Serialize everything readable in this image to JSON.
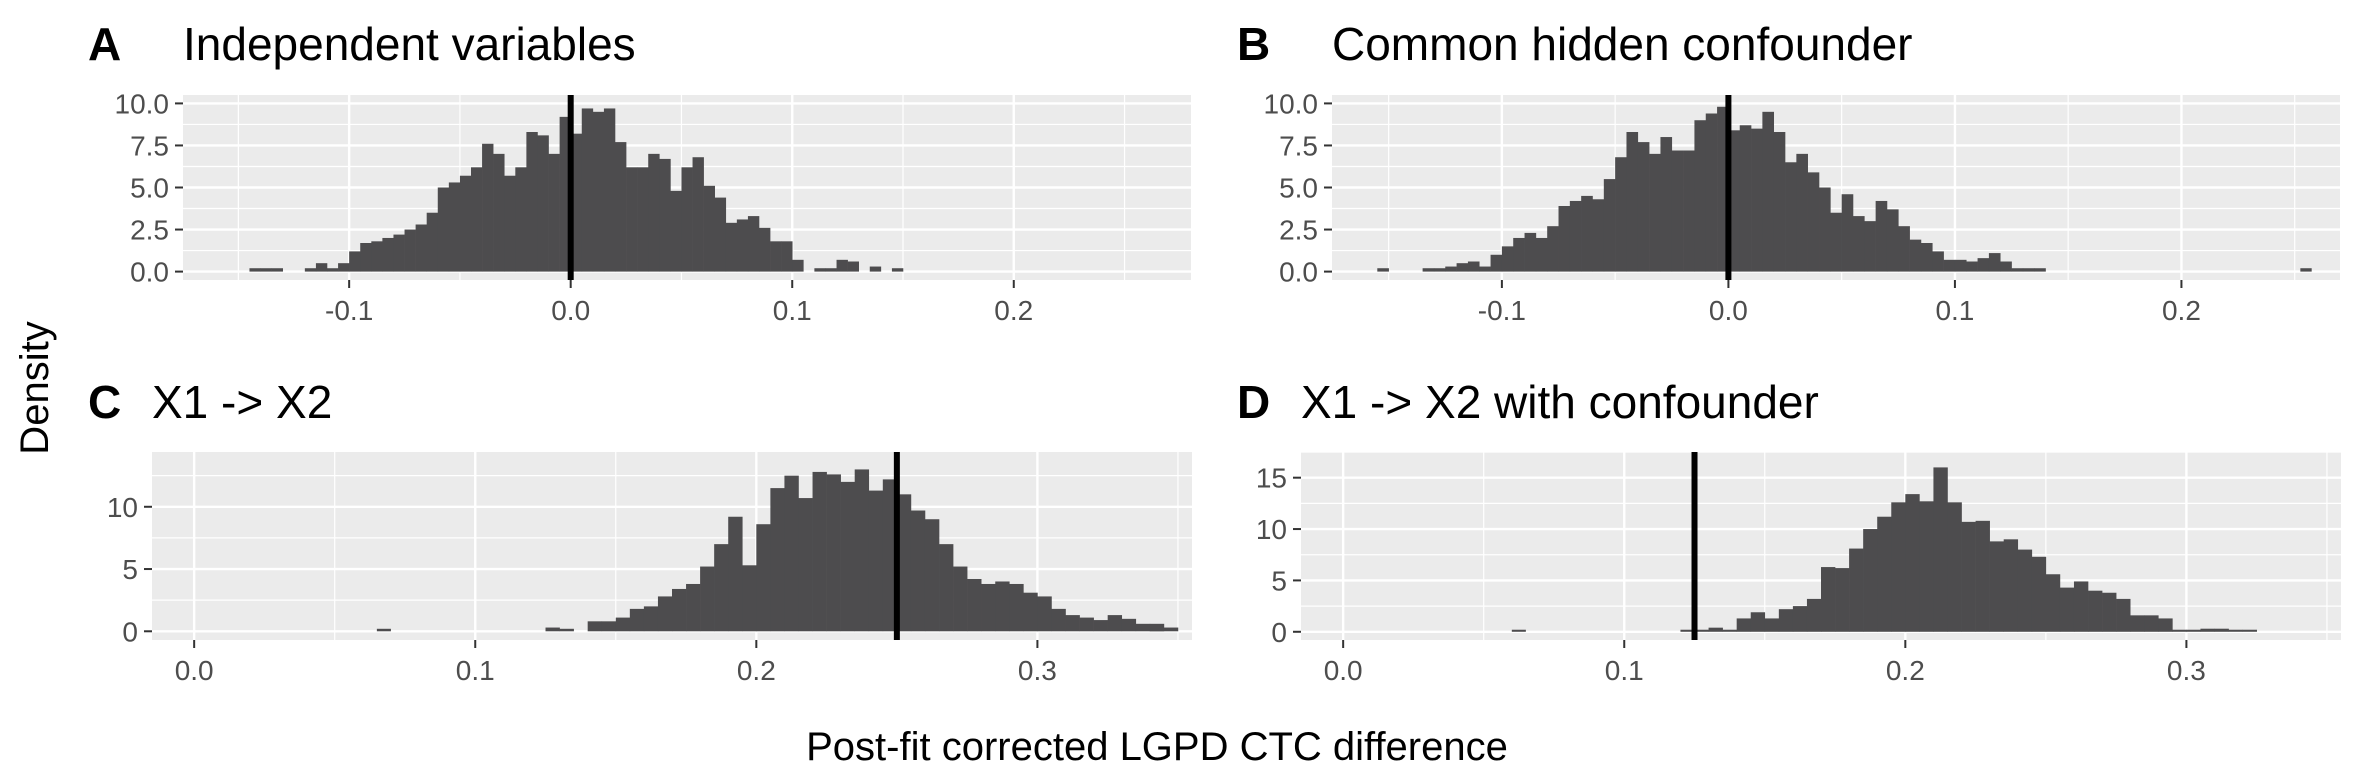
{
  "figure": {
    "xlabel": "Post-fit corrected LGPD CTC difference",
    "ylabel": "Density"
  },
  "chart_data": [
    {
      "type": "bar",
      "tag": "A",
      "title": "Independent variables",
      "xlabel": "Post-fit corrected LGPD CTC difference",
      "ylabel": "Density",
      "xlim": [
        -0.175,
        0.28
      ],
      "ylim": [
        -0.5,
        10.5
      ],
      "xticks": [
        -0.1,
        0.0,
        0.1,
        0.2
      ],
      "xtick_labels": [
        "-0.1",
        "0.0",
        "0.1",
        "0.2"
      ],
      "yticks": [
        0,
        2.5,
        5,
        7.5,
        10
      ],
      "ytick_labels": [
        "0.0",
        "2.5",
        "5.0",
        "7.5",
        "10.0"
      ],
      "bin_width": 0.005,
      "bins_start": -0.145,
      "values": [
        0.2,
        0.2,
        0.2,
        0,
        0,
        0.2,
        0.5,
        0.2,
        0.5,
        1.2,
        1.7,
        1.8,
        2.0,
        2.2,
        2.5,
        2.8,
        3.5,
        5.0,
        5.3,
        5.7,
        6.2,
        7.6,
        7.0,
        5.7,
        6.2,
        8.3,
        8.1,
        7.0,
        9.2,
        8.2,
        9.7,
        9.5,
        9.7,
        7.7,
        6.2,
        6.2,
        7.0,
        6.7,
        4.8,
        6.2,
        6.8,
        5.1,
        4.4,
        2.9,
        3.1,
        3.3,
        2.6,
        1.8,
        1.8,
        0.7,
        0,
        0.2,
        0.2,
        0.7,
        0.6,
        0,
        0.3,
        0,
        0.2
      ],
      "reference_line": 0.0,
      "bar_color": "#4d4c4e",
      "grid": true
    },
    {
      "type": "bar",
      "tag": "B",
      "title": "Common hidden confounder",
      "xlabel": "Post-fit corrected LGPD CTC difference",
      "ylabel": "Density",
      "xlim": [
        -0.175,
        0.27
      ],
      "ylim": [
        -0.5,
        10.5
      ],
      "xticks": [
        -0.1,
        0.0,
        0.1,
        0.2
      ],
      "xtick_labels": [
        "-0.1",
        "0.0",
        "0.1",
        "0.2"
      ],
      "yticks": [
        0,
        2.5,
        5,
        7.5,
        10
      ],
      "ytick_labels": [
        "0.0",
        "2.5",
        "5.0",
        "7.5",
        "10.0"
      ],
      "bin_width": 0.005,
      "bins_start": -0.155,
      "values": [
        0.2,
        0,
        0,
        0,
        0.2,
        0.2,
        0.3,
        0.5,
        0.6,
        0.3,
        1.0,
        1.5,
        2.0,
        2.3,
        2.0,
        2.7,
        3.9,
        4.2,
        4.5,
        4.3,
        5.5,
        6.8,
        8.3,
        7.7,
        7.0,
        8.0,
        7.2,
        7.2,
        9.0,
        9.4,
        9.8,
        8.4,
        8.7,
        8.5,
        9.5,
        8.3,
        6.5,
        7.0,
        5.9,
        5.0,
        3.5,
        4.6,
        3.3,
        3.0,
        4.2,
        3.7,
        2.7,
        1.9,
        1.7,
        1.2,
        0.7,
        0.7,
        0.6,
        0.8,
        1.1,
        0.6,
        0.2,
        0.2,
        0.2
      ],
      "outliers": [
        {
          "x": 0.255,
          "y": 0.2
        }
      ],
      "reference_line": 0.0,
      "bar_color": "#4d4c4e",
      "grid": true
    },
    {
      "type": "bar",
      "tag": "C",
      "title": "X1 -> X2",
      "xlabel": "Post-fit corrected LGPD CTC difference",
      "ylabel": "Density",
      "xlim": [
        -0.015,
        0.355
      ],
      "ylim": [
        -0.7,
        14.4
      ],
      "xticks": [
        0.0,
        0.1,
        0.2,
        0.3
      ],
      "xtick_labels": [
        "0.0",
        "0.1",
        "0.2",
        "0.3"
      ],
      "yticks": [
        0,
        5,
        10
      ],
      "ytick_labels": [
        "0",
        "5",
        "10"
      ],
      "bin_width": 0.005,
      "bins_start": 0.125,
      "values": [
        0.3,
        0.2,
        0,
        0.8,
        0.8,
        1.1,
        1.8,
        2.0,
        2.8,
        3.4,
        3.8,
        5.2,
        7.0,
        9.2,
        5.3,
        8.6,
        11.5,
        12.5,
        10.7,
        12.8,
        12.6,
        12.0,
        13.0,
        11.3,
        12.2,
        11.0,
        9.7,
        9.0,
        7.0,
        5.2,
        4.2,
        3.8,
        4.0,
        3.8,
        3.1,
        2.8,
        1.8,
        1.3,
        1.1,
        0.9,
        1.3,
        1.0,
        0.6,
        0.6,
        0.3
      ],
      "outliers": [
        {
          "x": 0.0675,
          "y": 0.2
        },
        {
          "x": 0.3425,
          "y": 0.2
        }
      ],
      "reference_line": 0.25,
      "bar_color": "#4d4c4e",
      "grid": true
    },
    {
      "type": "bar",
      "tag": "D",
      "title": "X1 -> X2 with confounder",
      "xlabel": "Post-fit corrected LGPD CTC difference",
      "ylabel": "Density",
      "xlim": [
        -0.015,
        0.355
      ],
      "ylim": [
        -0.8,
        17.5
      ],
      "xticks": [
        0.0,
        0.1,
        0.2,
        0.3
      ],
      "xtick_labels": [
        "0.0",
        "0.1",
        "0.2",
        "0.3"
      ],
      "yticks": [
        0,
        5,
        10,
        15
      ],
      "ytick_labels": [
        "0",
        "5",
        "10",
        "15"
      ],
      "bin_width": 0.005,
      "bins_start": 0.12,
      "values": [
        0.2,
        0.2,
        0.4,
        0.2,
        1.3,
        1.9,
        1.3,
        2.2,
        2.5,
        3.2,
        6.3,
        6.2,
        8.1,
        10.0,
        11.2,
        12.6,
        13.4,
        12.7,
        16.0,
        12.6,
        10.7,
        10.8,
        8.8,
        9.0,
        8.0,
        7.3,
        5.6,
        4.3,
        4.9,
        4.0,
        3.8,
        3.2,
        1.6,
        1.6,
        1.3,
        0.2,
        0.2,
        0.3,
        0.3,
        0.2,
        0.2
      ],
      "outliers": [
        {
          "x": 0.0625,
          "y": 0.2
        }
      ],
      "reference_line": 0.125,
      "bar_color": "#4d4c4e",
      "grid": true
    }
  ]
}
